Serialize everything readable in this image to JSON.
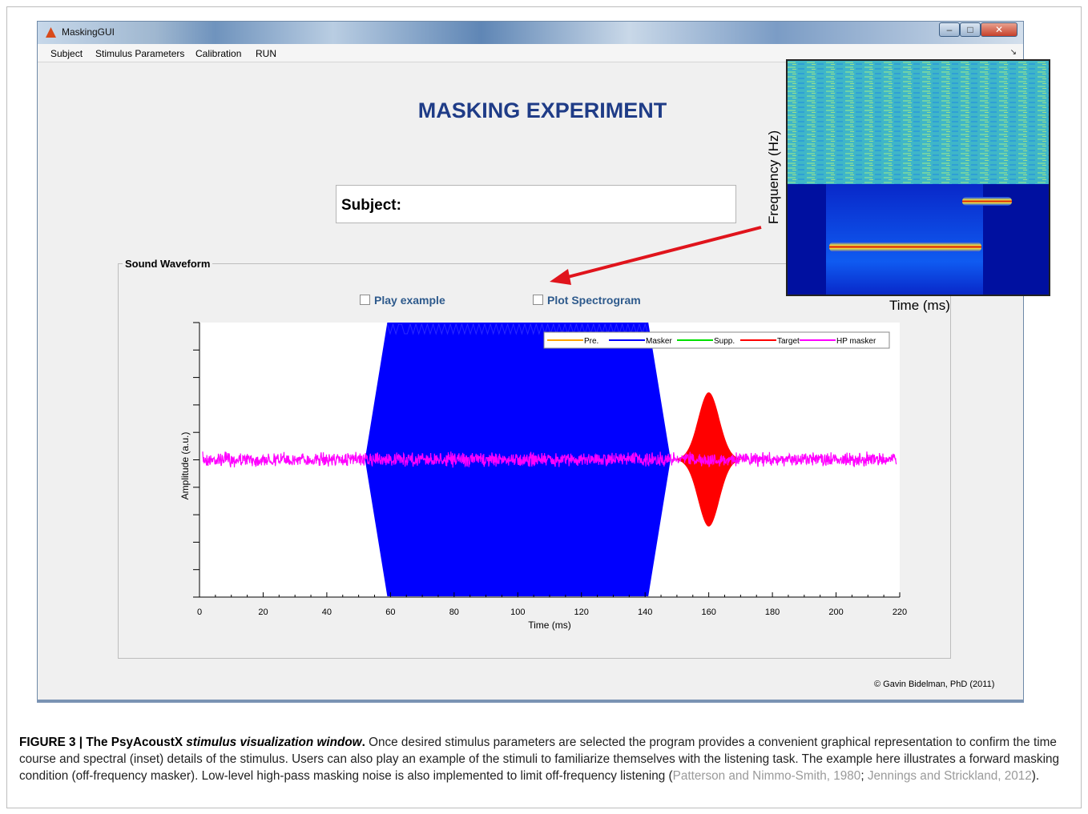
{
  "window": {
    "title": "MaskingGUI",
    "menu": [
      "Subject",
      "Stimulus Parameters",
      "Calibration",
      "RUN"
    ]
  },
  "heading": "MASKING EXPERIMENT",
  "subject_label": "Subject:",
  "panel": {
    "title": "Sound Waveform",
    "play_example_label": "Play example",
    "plot_spectrogram_label": "Plot Spectrogram",
    "play_example_checked": false,
    "plot_spectrogram_checked": false
  },
  "copyright": "© Gavin Bidelman, PhD (2011)",
  "inset": {
    "ylabel": "Frequency (Hz)",
    "xlabel": "Time (ms)"
  },
  "chart_data": {
    "type": "line",
    "xlabel": "Time (ms)",
    "ylabel": "Amplitude (a.u.)",
    "xlim": [
      0,
      220
    ],
    "xticks": [
      0,
      20,
      40,
      60,
      80,
      100,
      120,
      140,
      160,
      180,
      200,
      220
    ],
    "legend_position": "top-right",
    "series": [
      {
        "name": "Pre.",
        "color": "#ffa500",
        "segments": []
      },
      {
        "name": "Masker",
        "color": "#0000ff",
        "onset_ms": 52,
        "full_on_ms": 59,
        "offset_start_ms": 141,
        "offset_ms": 148,
        "peak_amplitude": 1.0
      },
      {
        "name": "Supp.",
        "color": "#00e000",
        "segments": []
      },
      {
        "name": "Target",
        "color": "#ff0000",
        "start_ms": 150,
        "end_ms": 170,
        "center_ms": 160,
        "peak_amplitude": 0.49
      },
      {
        "name": "HP masker",
        "color": "#ff00ff",
        "start_ms": 1,
        "end_ms": 219,
        "peak_amplitude": 0.06
      }
    ]
  },
  "caption": {
    "figure_label": "FIGURE 3 | The PsyAcoustX ",
    "figure_title": "stimulus visualization window",
    "figure_period": ".",
    "body": " Once desired stimulus parameters are selected the program provides a convenient graphical representation to confirm the time course and spectral (inset) details of the stimulus. Users can also play an example of the stimuli to familiarize themselves with the listening task. The example here illustrates a forward masking condition (off-frequency masker). Low-level high-pass masking noise is also implemented to limit off-frequency listening (",
    "cite1": "Patterson and Nimmo-Smith, 1980",
    "sep": "; ",
    "cite2": "Jennings and Strickland, 2012",
    "end": ")."
  }
}
